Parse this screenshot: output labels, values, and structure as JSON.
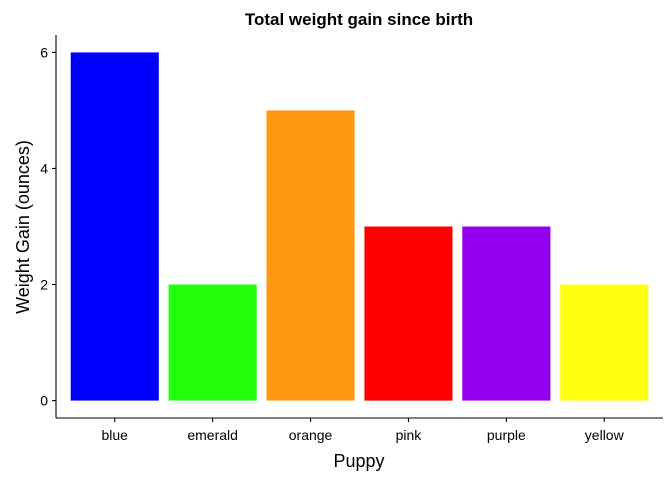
{
  "chart_data": {
    "type": "bar",
    "title": "Total weight gain since birth",
    "xlabel": "Puppy",
    "ylabel": "Weight Gain (ounces)",
    "categories": [
      "blue",
      "emerald",
      "orange",
      "pink",
      "purple",
      "yellow"
    ],
    "values": [
      6,
      2,
      5,
      3,
      3,
      2
    ],
    "colors": [
      "#0000ff",
      "#22ff0d",
      "#ff9911",
      "#ff0000",
      "#9400ee",
      "#ffff11"
    ],
    "ylim": [
      -0.3,
      6.3
    ],
    "yticks": [
      0,
      2,
      4,
      6
    ],
    "grid": false,
    "legend": "none"
  }
}
